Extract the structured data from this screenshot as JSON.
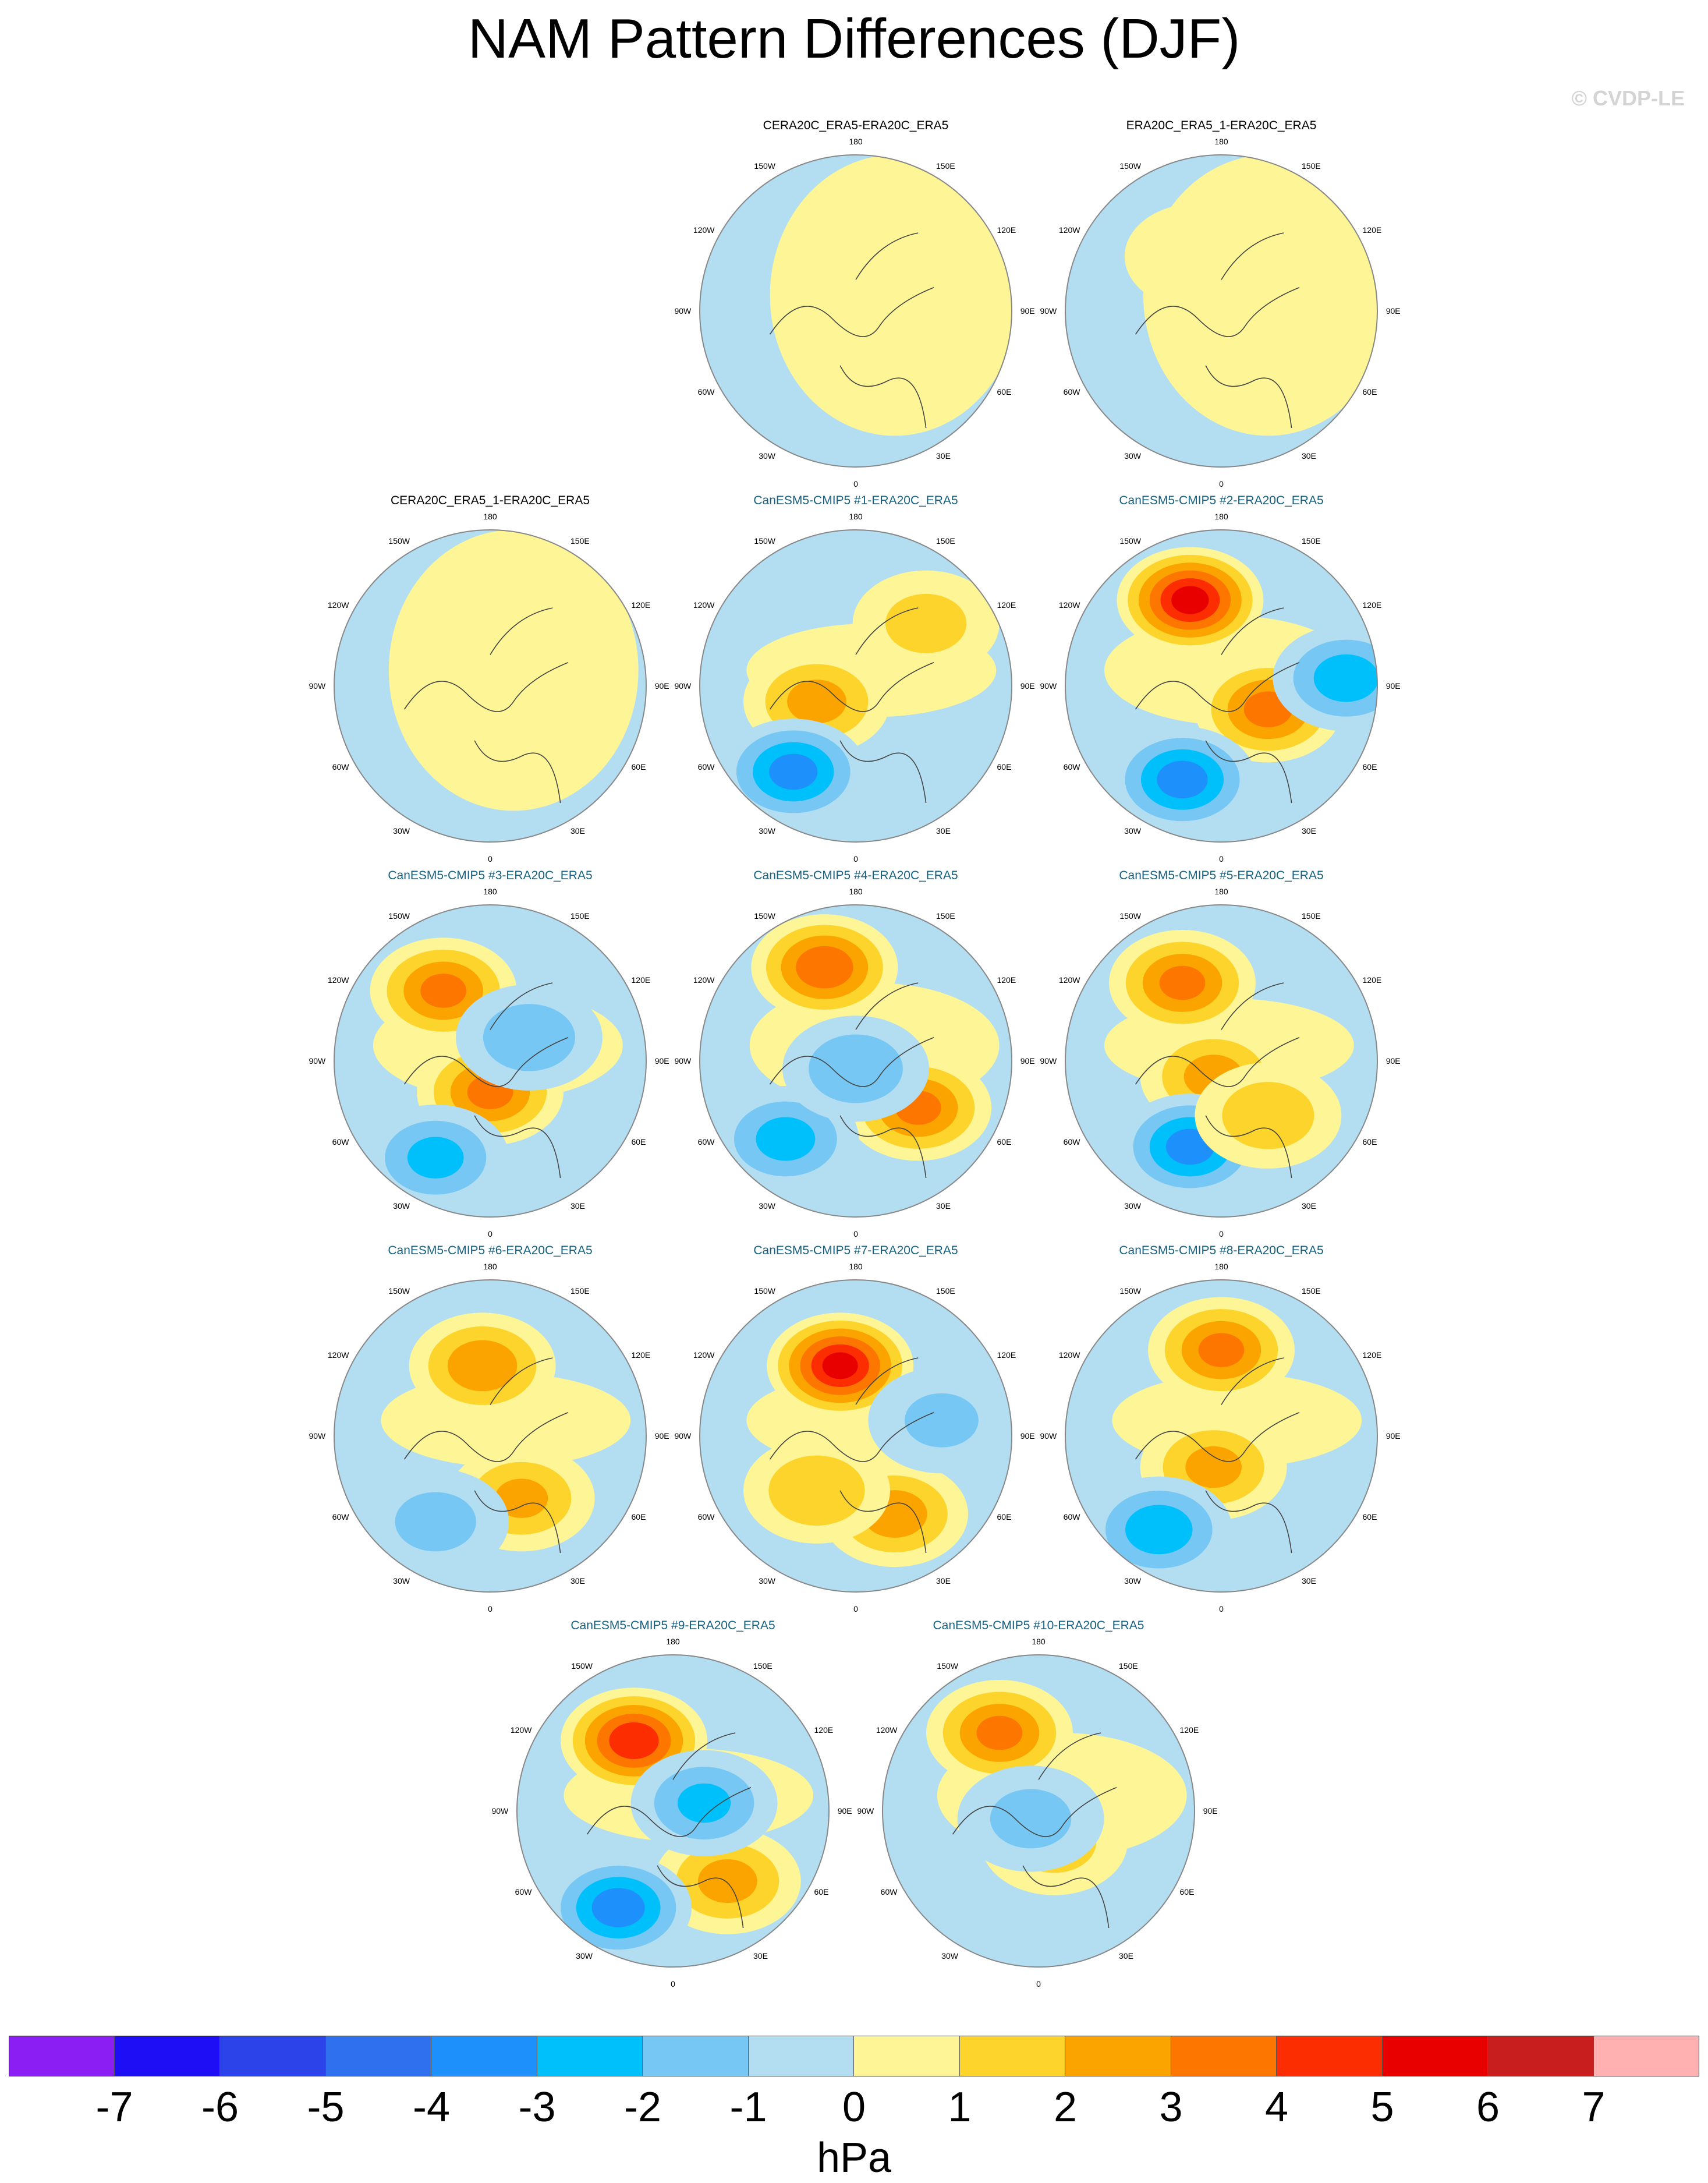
{
  "title": "NAM Pattern Differences (DJF)",
  "copyright": "© CVDP-LE",
  "longitude_labels": {
    "top": "180",
    "bottom": "0",
    "upper_left": "150W",
    "upper_right": "150E",
    "mid_upper_left": "120W",
    "mid_upper_right": "120E",
    "left": "90W",
    "right": "90E",
    "lower_left": "60W",
    "lower_right": "60E",
    "bottom_left": "30W",
    "bottom_right": "30E"
  },
  "panels": [
    {
      "title": "CERA20C_ERA5-ERA20C_ERA5",
      "kind": "obs",
      "row": 0,
      "col": 1,
      "field": [],
      "background": [
        0.25,
        0.9
      ]
    },
    {
      "title": "ERA20C_ERA5_1-ERA20C_ERA5",
      "kind": "obs",
      "row": 0,
      "col": 2,
      "field": [
        [
          -0.15,
          -0.35,
          0.8
        ]
      ],
      "background": [
        0.3,
        0.9
      ]
    },
    {
      "title": "CERA20C_ERA5_1-ERA20C_ERA5",
      "kind": "obs",
      "row": 1,
      "col": 0,
      "field": [
        [
          0.05,
          -0.15,
          0.8
        ]
      ],
      "background": [
        0.15,
        0.9
      ]
    },
    {
      "title": "CanESM5-CMIP5 #1-ERA20C_ERA5",
      "kind": "model",
      "row": 1,
      "col": 1,
      "field": [
        [
          -0.25,
          0.1,
          2.4
        ],
        [
          0.45,
          -0.4,
          1.4
        ],
        [
          -0.4,
          0.55,
          -3.4
        ]
      ],
      "background": [
        0.1,
        0.3
      ]
    },
    {
      "title": "CanESM5-CMIP5 #2-ERA20C_ERA5",
      "kind": "model",
      "row": 1,
      "col": 2,
      "field": [
        [
          -0.2,
          -0.55,
          5.4
        ],
        [
          0.3,
          0.15,
          3.4
        ],
        [
          -0.25,
          0.6,
          -3.5
        ],
        [
          0.8,
          -0.05,
          -2.6
        ]
      ],
      "background": [
        0.05,
        0.35
      ]
    },
    {
      "title": "CanESM5-CMIP5 #3-ERA20C_ERA5",
      "kind": "model",
      "row": 2,
      "col": 0,
      "field": [
        [
          -0.3,
          -0.45,
          3.3
        ],
        [
          0.0,
          0.2,
          3.3
        ],
        [
          -0.35,
          0.62,
          -2.3
        ],
        [
          0.25,
          -0.15,
          -1.8
        ]
      ],
      "background": [
        0.05,
        0.35
      ]
    },
    {
      "title": "CanESM5-CMIP5 #4-ERA20C_ERA5",
      "kind": "model",
      "row": 2,
      "col": 1,
      "field": [
        [
          -0.2,
          -0.6,
          3.8
        ],
        [
          0.4,
          0.3,
          3.3
        ],
        [
          -0.45,
          0.5,
          -2.4
        ],
        [
          0.0,
          0.05,
          -1.9
        ]
      ],
      "background": [
        0.12,
        0.4
      ]
    },
    {
      "title": "CanESM5-CMIP5 #5-ERA20C_ERA5",
      "kind": "model",
      "row": 2,
      "col": 2,
      "field": [
        [
          -0.25,
          -0.5,
          3.3
        ],
        [
          -0.05,
          0.1,
          2.4
        ],
        [
          -0.2,
          0.55,
          -3.4
        ],
        [
          0.3,
          0.35,
          1.8
        ]
      ],
      "background": [
        0.05,
        0.3
      ]
    },
    {
      "title": "CanESM5-CMIP5 #6-ERA20C_ERA5",
      "kind": "model",
      "row": 3,
      "col": 0,
      "field": [
        [
          -0.05,
          -0.45,
          2.8
        ],
        [
          0.2,
          0.4,
          2.2
        ],
        [
          -0.35,
          0.55,
          -1.4
        ]
      ],
      "background": [
        0.1,
        0.3
      ]
    },
    {
      "title": "CanESM5-CMIP5 #7-ERA20C_ERA5",
      "kind": "model",
      "row": 3,
      "col": 1,
      "field": [
        [
          -0.1,
          -0.45,
          5.3
        ],
        [
          0.25,
          0.5,
          2.6
        ],
        [
          -0.25,
          0.35,
          2.0
        ],
        [
          0.55,
          -0.1,
          -1.2
        ]
      ],
      "background": [
        0.1,
        0.3
      ]
    },
    {
      "title": "CanESM5-CMIP5 #8-ERA20C_ERA5",
      "kind": "model",
      "row": 3,
      "col": 2,
      "field": [
        [
          0.0,
          -0.55,
          3.3
        ],
        [
          -0.05,
          0.2,
          2.3
        ],
        [
          -0.4,
          0.6,
          -2.7
        ]
      ],
      "background": [
        0.1,
        0.3
      ]
    },
    {
      "title": "CanESM5-CMIP5 #9-ERA20C_ERA5",
      "kind": "model",
      "row": 4,
      "col": 0.5,
      "field": [
        [
          -0.25,
          -0.45,
          4.8
        ],
        [
          0.35,
          0.45,
          2.4
        ],
        [
          -0.35,
          0.62,
          -3.6
        ],
        [
          0.2,
          -0.05,
          -2.2
        ]
      ],
      "background": [
        0.1,
        0.3
      ]
    },
    {
      "title": "CanESM5-CMIP5 #10-ERA20C_ERA5",
      "kind": "model",
      "row": 4,
      "col": 1.5,
      "field": [
        [
          -0.25,
          -0.5,
          3.3
        ],
        [
          0.1,
          0.2,
          1.5
        ],
        [
          -0.05,
          0.05,
          -1.4
        ]
      ],
      "background": [
        0.15,
        0.4
      ]
    }
  ],
  "colorbar": {
    "colors": [
      "#8a1ef3",
      "#1e0ef5",
      "#2c43e9",
      "#2f70ee",
      "#1e90fc",
      "#00c0fc",
      "#76c7f3",
      "#b3def2",
      "#fdf596",
      "#fdd42c",
      "#fba400",
      "#fc7600",
      "#fc2d00",
      "#e80000",
      "#c81e1e",
      "#ffb1b1"
    ],
    "ticks": [
      "-7",
      "-6",
      "-5",
      "-4",
      "-3",
      "-2",
      "-1",
      "0",
      "1",
      "2",
      "3",
      "4",
      "5",
      "6",
      "7"
    ],
    "units": "hPa"
  }
}
